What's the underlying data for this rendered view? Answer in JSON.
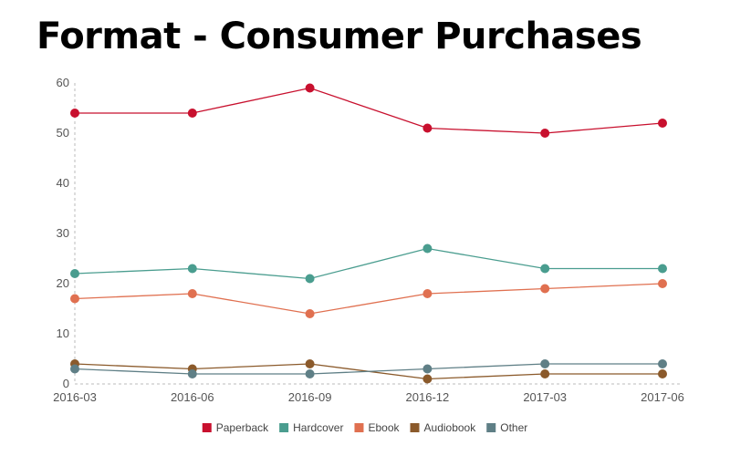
{
  "chart_data": {
    "type": "line",
    "title": "Format - Consumer Purchases",
    "xlabel": "",
    "ylabel": "",
    "x": [
      "2016-03",
      "2016-06",
      "2016-09",
      "2016-12",
      "2017-03",
      "2017-06"
    ],
    "ylim": [
      0,
      60
    ],
    "yticks": [
      0,
      10,
      20,
      30,
      40,
      50,
      60
    ],
    "grid": false,
    "legend_position": "bottom-center",
    "series": [
      {
        "name": "Paperback",
        "color": "#c8102e",
        "values": [
          54,
          54,
          59,
          51,
          50,
          52
        ]
      },
      {
        "name": "Hardcover",
        "color": "#4a9d8f",
        "values": [
          22,
          23,
          21,
          27,
          23,
          23
        ]
      },
      {
        "name": "Ebook",
        "color": "#e07050",
        "values": [
          17,
          18,
          14,
          18,
          19,
          20
        ]
      },
      {
        "name": "Audiobook",
        "color": "#8b5a2b",
        "values": [
          4,
          3,
          4,
          1,
          2,
          2
        ]
      },
      {
        "name": "Other",
        "color": "#5f7f86",
        "values": [
          3,
          2,
          2,
          3,
          4,
          4
        ]
      }
    ]
  }
}
